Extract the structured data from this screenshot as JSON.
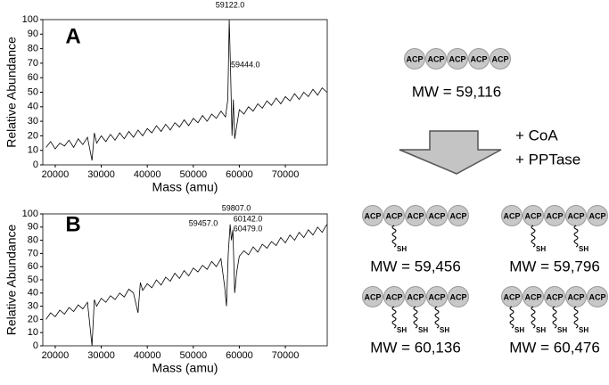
{
  "chart_data": [
    {
      "type": "line",
      "label": "A",
      "xlabel": "Mass (amu)",
      "ylabel": "Relative Abundance",
      "color": "#000000",
      "xlim": [
        17300,
        79100
      ],
      "xticks": [
        20000,
        30000,
        40000,
        50000,
        60000,
        70000
      ],
      "ylim": [
        0,
        100
      ],
      "yticks": [
        0,
        10,
        20,
        30,
        40,
        50,
        60,
        70,
        80,
        90,
        100
      ],
      "x": [
        18000,
        19000,
        20000,
        21000,
        22000,
        23000,
        24000,
        25000,
        26000,
        27000,
        28000,
        28500,
        29000,
        30000,
        31000,
        32000,
        33000,
        34000,
        35000,
        36000,
        37000,
        38000,
        39000,
        40000,
        41000,
        42000,
        43000,
        44000,
        45000,
        46000,
        47000,
        48000,
        49000,
        50000,
        51000,
        52000,
        53000,
        54000,
        55000,
        56000,
        57000,
        57500,
        57800,
        58100,
        58400,
        58700,
        59000,
        60000,
        61000,
        62000,
        63000,
        64000,
        65000,
        66000,
        67000,
        68000,
        69000,
        70000,
        71000,
        72000,
        73000,
        74000,
        75000,
        76000,
        77000,
        78000,
        79000
      ],
      "values": [
        12,
        16,
        11,
        15,
        13,
        17,
        12,
        18,
        14,
        19,
        3,
        22,
        15,
        20,
        16,
        21,
        17,
        22,
        18,
        23,
        19,
        24,
        20,
        25,
        22,
        27,
        23,
        28,
        24,
        29,
        26,
        31,
        27,
        32,
        29,
        34,
        30,
        35,
        32,
        37,
        33,
        45,
        100,
        65,
        20,
        45,
        18,
        38,
        35,
        40,
        37,
        42,
        39,
        44,
        41,
        46,
        42,
        47,
        44,
        49,
        45,
        50,
        47,
        52,
        48,
        53,
        50
      ],
      "annotations": [
        "59122.0",
        "59444.0"
      ]
    },
    {
      "type": "line",
      "label": "B",
      "xlabel": "Mass (amu)",
      "ylabel": "Relative Abundance",
      "color": "#000000",
      "xlim": [
        17300,
        79100
      ],
      "xticks": [
        20000,
        30000,
        40000,
        50000,
        60000,
        70000
      ],
      "ylim": [
        0,
        100
      ],
      "yticks": [
        0,
        10,
        20,
        30,
        40,
        50,
        60,
        70,
        80,
        90,
        100
      ],
      "x": [
        18000,
        19000,
        20000,
        21000,
        22000,
        23000,
        24000,
        25000,
        26000,
        27000,
        28000,
        28500,
        29000,
        30000,
        31000,
        32000,
        33000,
        34000,
        35000,
        36000,
        37000,
        38000,
        38500,
        39000,
        40000,
        41000,
        42000,
        43000,
        44000,
        45000,
        46000,
        47000,
        48000,
        49000,
        50000,
        51000,
        52000,
        53000,
        54000,
        55000,
        56000,
        56800,
        57200,
        57600,
        58000,
        58300,
        58600,
        59000,
        59400,
        60000,
        61000,
        62000,
        63000,
        64000,
        65000,
        66000,
        67000,
        68000,
        69000,
        70000,
        71000,
        72000,
        73000,
        74000,
        75000,
        76000,
        77000,
        78000,
        79000
      ],
      "values": [
        20,
        25,
        22,
        27,
        24,
        29,
        26,
        31,
        28,
        33,
        0,
        35,
        30,
        36,
        33,
        38,
        35,
        40,
        37,
        43,
        40,
        25,
        48,
        42,
        47,
        44,
        50,
        46,
        52,
        49,
        55,
        51,
        57,
        53,
        59,
        56,
        61,
        58,
        64,
        60,
        66,
        45,
        30,
        70,
        92,
        80,
        88,
        40,
        55,
        68,
        72,
        69,
        75,
        71,
        77,
        74,
        79,
        76,
        82,
        78,
        84,
        80,
        86,
        82,
        88,
        84,
        90,
        86,
        92
      ],
      "annotations": [
        "59807.0",
        "60142.0",
        "60479.0",
        "59457.0"
      ]
    }
  ],
  "diagram": {
    "unit_label": "ACP",
    "thiol_label": "SH",
    "start_mw": "MW = 59,116",
    "reagents": [
      "+ CoA",
      "+ PPTase"
    ],
    "products": [
      {
        "mw": "MW = 59,456",
        "sh_sites": [
          1
        ]
      },
      {
        "mw": "MW = 59,796",
        "sh_sites": [
          1,
          3
        ]
      },
      {
        "mw": "MW = 60,136",
        "sh_sites": [
          1,
          2,
          3
        ]
      },
      {
        "mw": "MW = 60,476",
        "sh_sites": [
          0,
          1,
          2,
          3
        ]
      }
    ]
  }
}
